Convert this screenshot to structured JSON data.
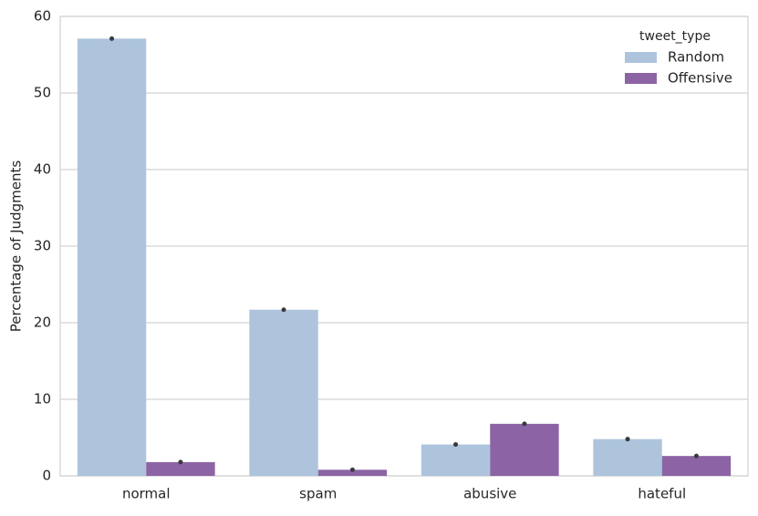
{
  "chart_data": {
    "type": "bar",
    "y_label": "Percentage of Judgments",
    "categories": [
      "normal",
      "spam",
      "abusive",
      "hateful"
    ],
    "series": [
      {
        "name": "Random",
        "color": "#adc4dc",
        "values": [
          57.1,
          21.7,
          4.1,
          4.8
        ]
      },
      {
        "name": "Offensive",
        "color": "#8c64a5",
        "values": [
          1.8,
          0.8,
          6.8,
          2.6
        ]
      }
    ],
    "legend_title": "tweet_type",
    "legend": "upper right",
    "ylim": [
      0,
      60
    ],
    "yticks": [
      0,
      10,
      20,
      30,
      40,
      50,
      60
    ],
    "grid": true
  }
}
